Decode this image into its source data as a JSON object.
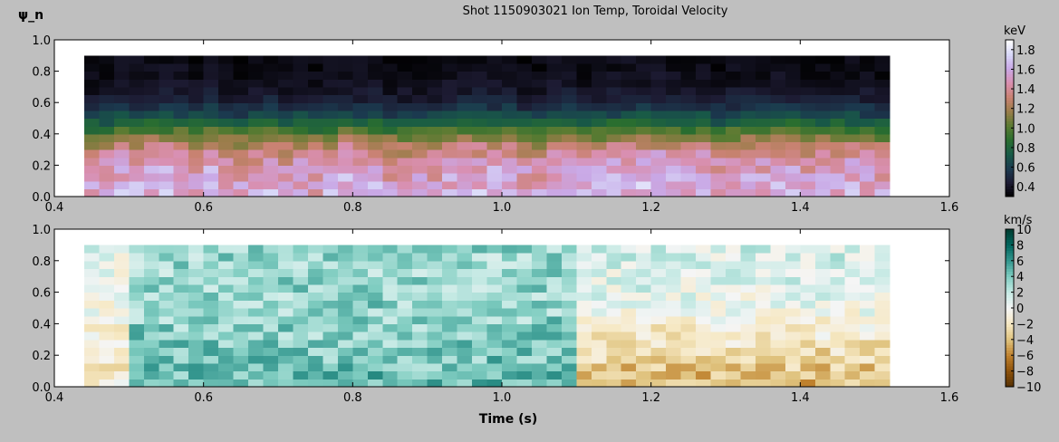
{
  "figure": {
    "title": "Shot 1150903021 Ion Temp, Toroidal Velocity",
    "ylabel": "ψ_n",
    "xlabel": "Time (s)",
    "background": "#bfbfbf"
  },
  "chart_data": [
    {
      "type": "heatmap",
      "name": "Ion Temperature",
      "xlim": [
        0.4,
        1.6
      ],
      "ylim": [
        0.0,
        1.0
      ],
      "x_ticks": [
        "0.4",
        "0.6",
        "0.8",
        "1.0",
        "1.2",
        "1.4",
        "1.6"
      ],
      "y_ticks": [
        "0.0",
        "0.2",
        "0.4",
        "0.6",
        "0.8",
        "1.0"
      ],
      "x_range": [
        0.44,
        1.52
      ],
      "y_range": [
        0.0,
        0.9
      ],
      "n_time": 54,
      "n_psi": 18,
      "colorbar": {
        "label": "keV",
        "range": [
          0.3,
          1.9
        ],
        "ticks": [
          "0.4",
          "0.6",
          "0.8",
          "1.0",
          "1.2",
          "1.4",
          "1.6",
          "1.8"
        ],
        "tick_values": [
          0.4,
          0.6,
          0.8,
          1.0,
          1.2,
          1.4,
          1.6,
          1.8
        ],
        "colormap": [
          "#000000",
          "#1d1b33",
          "#1b3a4f",
          "#185a47",
          "#2a6e2f",
          "#5b7b32",
          "#9a7d4a",
          "#c98272",
          "#d98fb0",
          "#c9a8e6",
          "#d8d8f8",
          "#ffffff"
        ]
      },
      "profile": {
        "description": "Ti(psi) ~ core 1.6 keV, edge 0.35 keV, falls off between psi 0.2 and 0.6",
        "core_keV": 1.6,
        "edge_keV": 0.35
      }
    },
    {
      "type": "heatmap",
      "name": "Toroidal Velocity",
      "xlim": [
        0.4,
        1.6
      ],
      "ylim": [
        0.0,
        1.0
      ],
      "x_ticks": [
        "0.4",
        "0.6",
        "0.8",
        "1.0",
        "1.2",
        "1.4",
        "1.6"
      ],
      "y_ticks": [
        "0.0",
        "0.2",
        "0.4",
        "0.6",
        "0.8",
        "1.0"
      ],
      "x_range": [
        0.44,
        1.52
      ],
      "y_range": [
        0.0,
        0.9
      ],
      "n_time": 54,
      "n_psi": 18,
      "colorbar": {
        "label": "km/s",
        "range": [
          -10,
          10
        ],
        "ticks": [
          "10",
          "8",
          "6",
          "4",
          "2",
          "0",
          "−2",
          "−4",
          "−6",
          "−8",
          "−10"
        ],
        "tick_values": [
          10,
          8,
          6,
          4,
          2,
          0,
          -2,
          -4,
          -6,
          -8,
          -10
        ],
        "colormap": [
          "#543005",
          "#8c510a",
          "#bf812d",
          "#dfc27d",
          "#f6e8c3",
          "#f5f5f5",
          "#c7eae5",
          "#80cdc1",
          "#35978f",
          "#01665e",
          "#003c30"
        ]
      },
      "profile": {
        "description": "positive (co-current) before ~1.1 s, reverses to negative after ~1.1 s in core",
        "reversal_time_s": 1.1
      }
    }
  ]
}
